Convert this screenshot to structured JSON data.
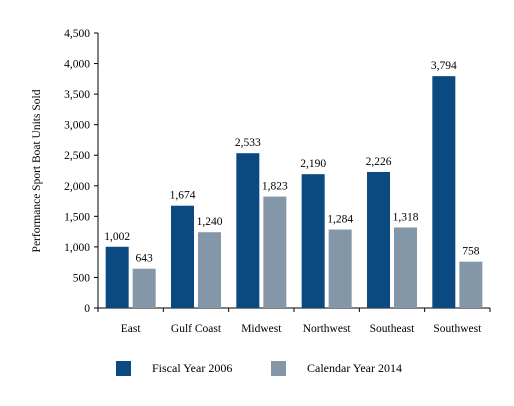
{
  "chart_data": {
    "type": "bar",
    "ylabel": "Performance Sport Boat Units Sold",
    "ylim": [
      0,
      4500
    ],
    "yticks": [
      0,
      500,
      1000,
      1500,
      2000,
      2500,
      3000,
      3500,
      4000,
      4500
    ],
    "ytick_labels": [
      "0",
      "500",
      "1,000",
      "1,500",
      "2,000",
      "2,500",
      "3,000",
      "3,500",
      "4,000",
      "4,500"
    ],
    "categories": [
      "East",
      "Gulf Coast",
      "Midwest",
      "Northwest",
      "Southeast",
      "Southwest"
    ],
    "series": [
      {
        "name": "Fiscal Year 2006",
        "color": "#0b4a80",
        "values": [
          1002,
          1674,
          2533,
          2190,
          2226,
          3794
        ],
        "labels": [
          "1,002",
          "1,674",
          "2,533",
          "2,190",
          "2,226",
          "3,794"
        ]
      },
      {
        "name": "Calendar Year 2014",
        "color": "#8497a8",
        "values": [
          643,
          1240,
          1823,
          1284,
          1318,
          758
        ],
        "labels": [
          "643",
          "1,240",
          "1,823",
          "1,284",
          "1,318",
          "758"
        ]
      }
    ],
    "grid": false,
    "legend_position": "bottom"
  }
}
